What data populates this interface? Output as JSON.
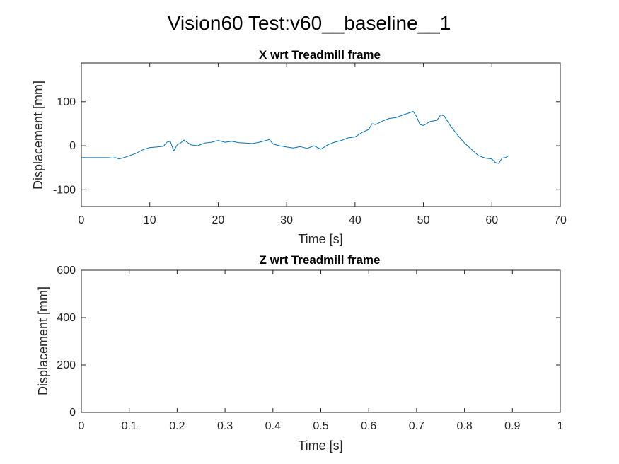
{
  "figure": {
    "suptitle": "Vision60 Test:v60__baseline__1"
  },
  "chart_data": [
    {
      "type": "line",
      "title": "X wrt Treadmill frame",
      "xlabel": "Time [s]",
      "ylabel": "Displacement [mm]",
      "xlim": [
        0,
        70
      ],
      "ylim": [
        -138,
        188
      ],
      "xticks": [
        0,
        10,
        20,
        30,
        40,
        50,
        60,
        70
      ],
      "yticks": [
        -100,
        0,
        100
      ],
      "xtick_labels": [
        "0",
        "10",
        "20",
        "30",
        "40",
        "50",
        "60",
        "70"
      ],
      "ytick_labels": [
        "-100",
        "0",
        "100"
      ],
      "grid": false,
      "line_color": "#0072BD",
      "series": [
        {
          "x": [
            0,
            2,
            4,
            4.5,
            5,
            5.5,
            6,
            7,
            8,
            9,
            10,
            11,
            12,
            12.5,
            13,
            13.5,
            14,
            14.5,
            15,
            16,
            17,
            18,
            19,
            20,
            21,
            22,
            23,
            24,
            25,
            26,
            27,
            27.5,
            28,
            29,
            30,
            31,
            32,
            33,
            34,
            35,
            35.5,
            36,
            37,
            38,
            39,
            40,
            41,
            42,
            42.5,
            43,
            44,
            45,
            46,
            47,
            48,
            48.5,
            49,
            49.5,
            50,
            51,
            52,
            52.5,
            53,
            54,
            55,
            56,
            57,
            58,
            59,
            60,
            60.5,
            61,
            61.5,
            62,
            62.5
          ],
          "y": [
            -27,
            -27,
            -27,
            -28,
            -27,
            -30,
            -28,
            -23,
            -17,
            -9,
            -4,
            -3,
            -1,
            8,
            10,
            -12,
            2,
            6,
            13,
            2,
            0,
            6,
            8,
            12,
            8,
            10,
            7,
            6,
            5,
            8,
            12,
            14,
            4,
            0,
            -3,
            -5,
            -2,
            -6,
            0,
            -8,
            -3,
            2,
            8,
            12,
            18,
            20,
            30,
            37,
            50,
            48,
            56,
            62,
            64,
            70,
            75,
            78,
            66,
            48,
            46,
            55,
            58,
            70,
            68,
            44,
            24,
            6,
            -8,
            -22,
            -28,
            -30,
            -38,
            -40,
            -28,
            -27,
            -22
          ]
        }
      ]
    },
    {
      "type": "line",
      "title": "Z wrt Treadmill frame",
      "xlabel": "Time [s]",
      "ylabel": "Displacement [mm]",
      "xlim": [
        0,
        1
      ],
      "ylim": [
        0,
        600
      ],
      "xticks": [
        0,
        0.1,
        0.2,
        0.3,
        0.4,
        0.5,
        0.6,
        0.7,
        0.8,
        0.9,
        1
      ],
      "yticks": [
        0,
        200,
        400,
        600
      ],
      "xtick_labels": [
        "0",
        "0.1",
        "0.2",
        "0.3",
        "0.4",
        "0.5",
        "0.6",
        "0.7",
        "0.8",
        "0.9",
        "1"
      ],
      "ytick_labels": [
        "0",
        "200",
        "400",
        "600"
      ],
      "grid": false,
      "series": []
    }
  ]
}
